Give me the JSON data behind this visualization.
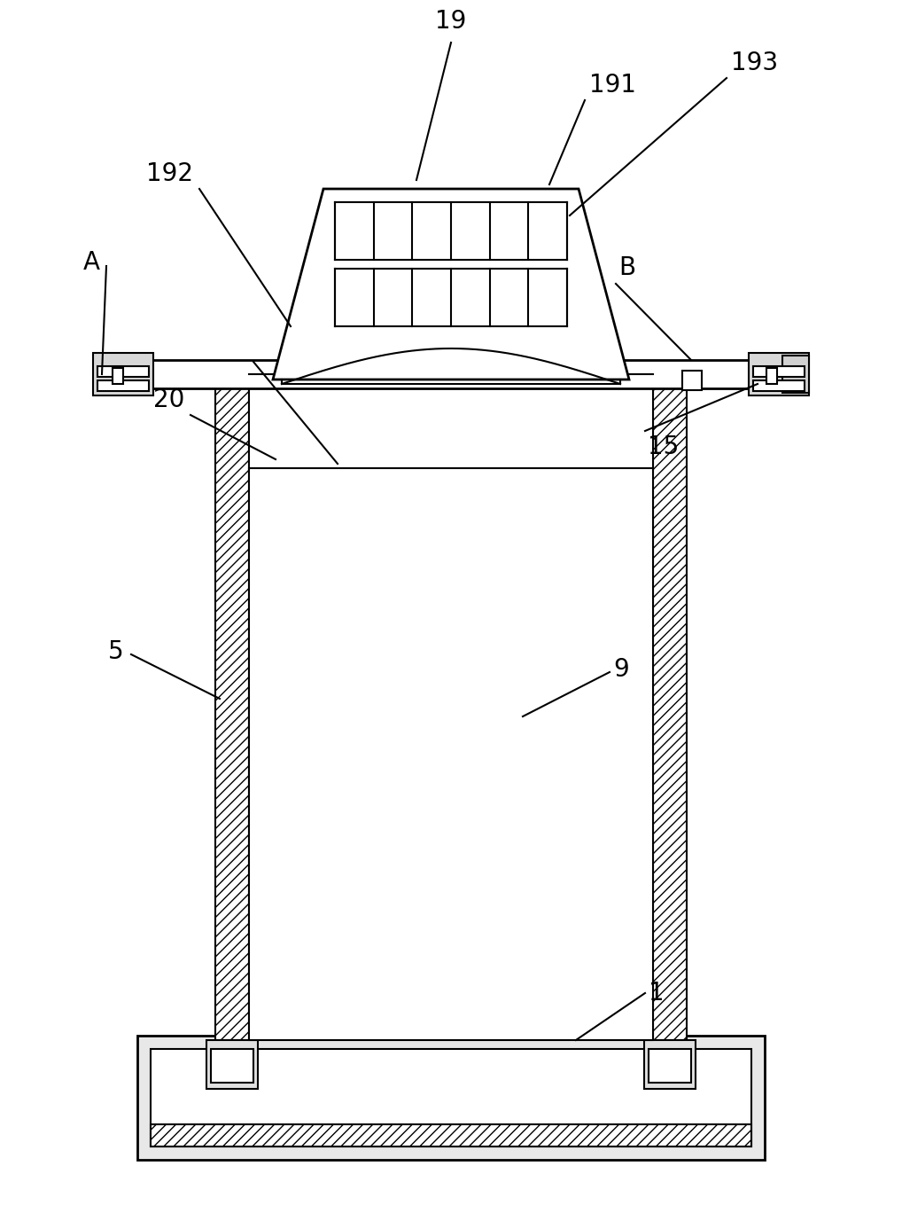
{
  "bg_color": "#ffffff",
  "line_color": "#000000",
  "lw": 1.5,
  "lw2": 2.0,
  "fig_width": 10.18,
  "fig_height": 13.68,
  "label_fontsize": 20
}
